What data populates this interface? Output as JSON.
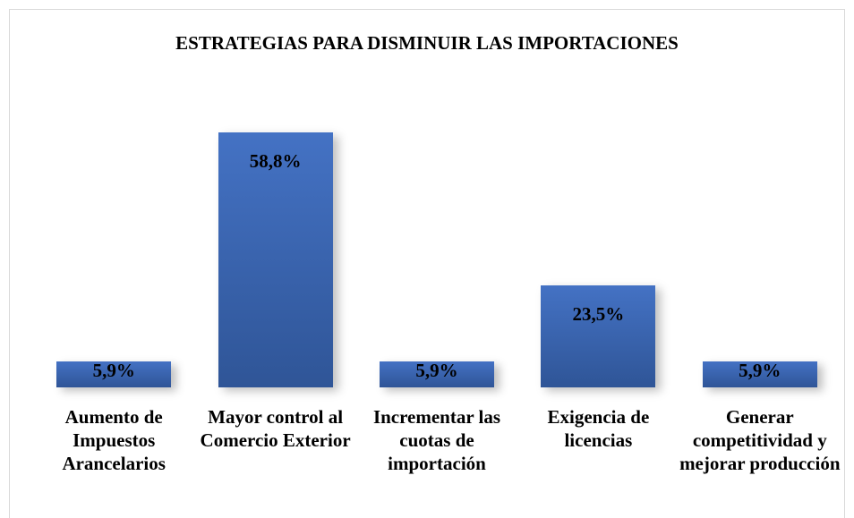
{
  "chart_data": {
    "type": "bar",
    "title": "ESTRATEGIAS PARA DISMINUIR LAS IMPORTACIONES",
    "categories": [
      "Aumento de Impuestos Arancelarios",
      "Mayor control al Comercio Exterior",
      "Incrementar las cuotas de importación",
      "Exigencia de licencias",
      "Generar competitividad y mejorar producción"
    ],
    "values": [
      5.9,
      58.8,
      5.9,
      23.5,
      5.9
    ],
    "value_labels": [
      "5,9%",
      "58,8%",
      "5,9%",
      "23,5%",
      "5,9%"
    ],
    "color": "#4472c4"
  }
}
